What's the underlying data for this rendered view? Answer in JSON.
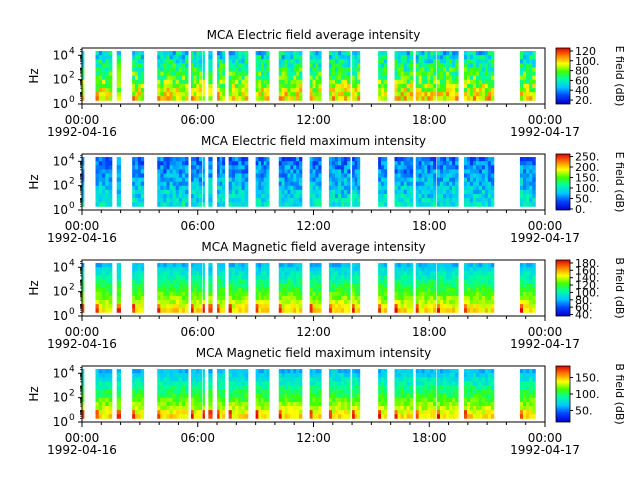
{
  "chart_data": [
    {
      "type": "heatmap",
      "title": "MCA  Electric field average intensity",
      "ylabel": "Hz",
      "yscale": "log",
      "yticks": [
        "10",
        "10",
        "10"
      ],
      "yticks_exp": [
        "0",
        "2",
        "4"
      ],
      "xticks": [
        "00:00",
        "06:00",
        "12:00",
        "18:00",
        "00:00"
      ],
      "xdates": [
        "1992-04-16",
        "1992-04-17"
      ],
      "colorbar": {
        "label": "E field (dB)",
        "ticks": [
          "20.",
          "40",
          "60",
          "80",
          "100.",
          "120"
        ],
        "range": [
          12,
          126
        ]
      },
      "x_hours": [
        0,
        24
      ],
      "data_blocks_hours": [
        [
          0.0,
          0.1
        ],
        [
          0.7,
          1.55
        ],
        [
          1.8,
          2.0
        ],
        [
          2.6,
          3.2
        ],
        [
          3.9,
          5.5
        ],
        [
          5.65,
          6.2
        ],
        [
          6.25,
          6.35
        ],
        [
          6.55,
          6.75
        ],
        [
          7.0,
          7.4
        ],
        [
          7.6,
          8.6
        ],
        [
          9.0,
          9.7
        ],
        [
          10.2,
          11.4
        ],
        [
          11.8,
          12.4
        ],
        [
          12.8,
          13.9
        ],
        [
          14.0,
          14.4
        ],
        [
          15.35,
          15.8
        ],
        [
          16.2,
          17.15
        ],
        [
          17.3,
          18.35
        ],
        [
          18.4,
          19.5
        ],
        [
          19.8,
          21.35
        ],
        [
          22.7,
          23.5
        ]
      ]
    },
    {
      "type": "heatmap",
      "title": "MCA  Electric field maximum intensity",
      "ylabel": "Hz",
      "yscale": "log",
      "yticks": [
        "10",
        "10",
        "10"
      ],
      "yticks_exp": [
        "0",
        "2",
        "4"
      ],
      "xticks": [
        "00:00",
        "06:00",
        "12:00",
        "18:00",
        "00:00"
      ],
      "xdates": [
        "1992-04-16",
        "1992-04-17"
      ],
      "colorbar": {
        "label": "E field (dB)",
        "ticks": [
          "0.",
          "50.",
          "100.",
          "150.",
          "200.",
          "250."
        ],
        "range": [
          -5,
          262
        ]
      },
      "x_hours": [
        0,
        24
      ],
      "data_blocks_hours": [
        [
          0.0,
          0.1
        ],
        [
          0.7,
          1.55
        ],
        [
          1.8,
          2.0
        ],
        [
          2.6,
          3.2
        ],
        [
          3.9,
          5.5
        ],
        [
          5.65,
          6.2
        ],
        [
          6.25,
          6.35
        ],
        [
          6.55,
          6.75
        ],
        [
          7.0,
          7.4
        ],
        [
          7.6,
          8.6
        ],
        [
          9.0,
          9.7
        ],
        [
          10.2,
          11.4
        ],
        [
          11.8,
          12.4
        ],
        [
          12.8,
          13.9
        ],
        [
          14.0,
          14.4
        ],
        [
          15.35,
          15.8
        ],
        [
          16.2,
          17.15
        ],
        [
          17.3,
          18.35
        ],
        [
          18.4,
          19.5
        ],
        [
          19.8,
          21.35
        ],
        [
          22.7,
          23.5
        ]
      ]
    },
    {
      "type": "heatmap",
      "title": "MCA  Magnetic field average intensity",
      "ylabel": "Hz",
      "yscale": "log",
      "yticks": [
        "10",
        "10",
        "10"
      ],
      "yticks_exp": [
        "0",
        "2",
        "4"
      ],
      "xticks": [
        "00:00",
        "06:00",
        "12:00",
        "18:00",
        "00:00"
      ],
      "xdates": [
        "1992-04-16",
        "1992-04-17"
      ],
      "colorbar": {
        "label": "B field (dB)",
        "ticks": [
          "40.",
          "60.",
          "80.",
          "100.",
          "120.",
          "140.",
          "160.",
          "180."
        ],
        "range": [
          36,
          188
        ]
      },
      "x_hours": [
        0,
        24
      ],
      "data_blocks_hours": [
        [
          0.0,
          0.1
        ],
        [
          0.7,
          1.55
        ],
        [
          1.8,
          2.0
        ],
        [
          2.6,
          3.2
        ],
        [
          3.9,
          5.5
        ],
        [
          5.65,
          6.2
        ],
        [
          6.25,
          6.35
        ],
        [
          6.55,
          6.75
        ],
        [
          7.0,
          7.4
        ],
        [
          7.6,
          8.6
        ],
        [
          9.0,
          9.7
        ],
        [
          10.2,
          11.4
        ],
        [
          11.8,
          12.4
        ],
        [
          12.8,
          13.9
        ],
        [
          14.0,
          14.4
        ],
        [
          15.35,
          15.8
        ],
        [
          16.2,
          17.15
        ],
        [
          17.3,
          18.35
        ],
        [
          18.4,
          19.5
        ],
        [
          19.8,
          21.35
        ],
        [
          22.7,
          23.5
        ]
      ]
    },
    {
      "type": "heatmap",
      "title": "MCA  Magnetic field maximum intensity",
      "ylabel": "Hz",
      "yscale": "log",
      "yticks": [
        "10",
        "10",
        "10"
      ],
      "yticks_exp": [
        "0",
        "2",
        "4"
      ],
      "xticks": [
        "00:00",
        "06:00",
        "12:00",
        "18:00",
        "00:00"
      ],
      "xdates": [
        "1992-04-16",
        "1992-04-17"
      ],
      "colorbar": {
        "label": "B field (dB)",
        "ticks": [
          "50.",
          "100.",
          "150."
        ],
        "range": [
          15,
          185
        ]
      },
      "x_hours": [
        0,
        24
      ],
      "data_blocks_hours": [
        [
          0.0,
          0.1
        ],
        [
          0.7,
          1.55
        ],
        [
          1.8,
          2.0
        ],
        [
          2.6,
          3.2
        ],
        [
          3.9,
          5.5
        ],
        [
          5.65,
          6.2
        ],
        [
          6.25,
          6.35
        ],
        [
          6.55,
          6.75
        ],
        [
          7.0,
          7.4
        ],
        [
          7.6,
          8.6
        ],
        [
          9.0,
          9.7
        ],
        [
          10.2,
          11.4
        ],
        [
          11.8,
          12.4
        ],
        [
          12.8,
          13.9
        ],
        [
          14.0,
          14.4
        ],
        [
          15.35,
          15.8
        ],
        [
          16.2,
          17.15
        ],
        [
          17.3,
          18.35
        ],
        [
          18.4,
          19.5
        ],
        [
          19.8,
          21.35
        ],
        [
          22.7,
          23.5
        ]
      ]
    }
  ]
}
